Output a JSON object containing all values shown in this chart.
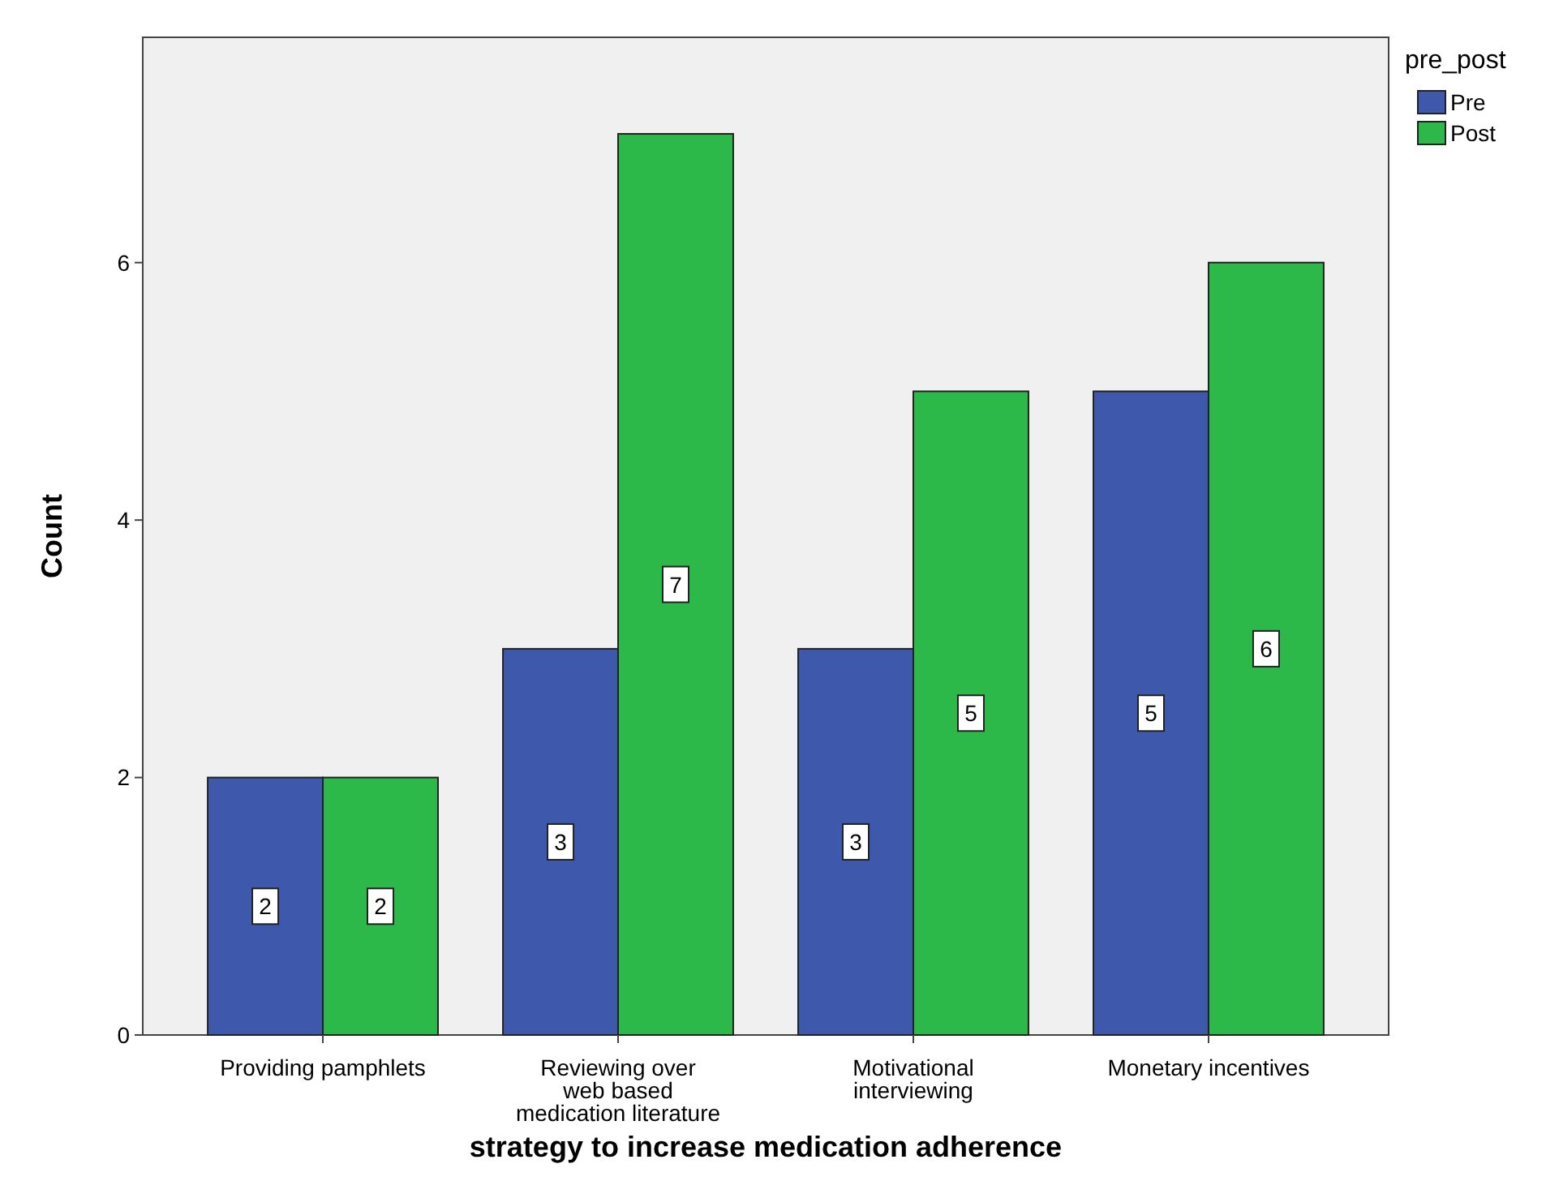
{
  "chart_data": {
    "type": "bar",
    "xlabel": "strategy to increase medication adherence",
    "ylabel": "Count",
    "categories": [
      "Providing pamphlets",
      "Reviewing over\nweb based\nmedication literature",
      "Motivational\ninterviewing",
      "Monetary incentives"
    ],
    "series": [
      {
        "name": "Pre",
        "color": "#3e58ac",
        "values": [
          2,
          3,
          3,
          5
        ]
      },
      {
        "name": "Post",
        "color": "#2db84a",
        "values": [
          2,
          7,
          5,
          6
        ]
      }
    ],
    "ylim": [
      0,
      7.75
    ],
    "yticks": [
      0,
      2,
      4,
      6
    ],
    "grid": false,
    "legend": "top right",
    "legend_title": "pre_post",
    "data_labels": true
  }
}
